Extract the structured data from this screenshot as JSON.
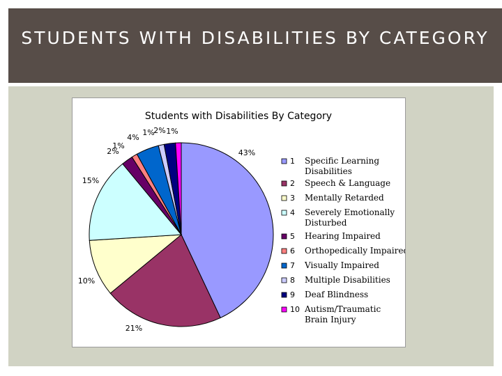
{
  "slide": {
    "title": "STUDENTS WITH DISABILITIES BY CATEGORY"
  },
  "chart_data": {
    "type": "pie",
    "title": "Students with Disabilities By Category",
    "slices": [
      {
        "num": "1",
        "label": "Specific Learning Disabilities",
        "value": 43,
        "pct_label": "43%",
        "color": "#9999ff"
      },
      {
        "num": "2",
        "label": "Speech & Language",
        "value": 21,
        "pct_label": "21%",
        "color": "#993366"
      },
      {
        "num": "3",
        "label": "Mentally Retarded",
        "value": 10,
        "pct_label": "10%",
        "color": "#ffffcc"
      },
      {
        "num": "4",
        "label": "Severely Emotionally Disturbed",
        "value": 15,
        "pct_label": "15%",
        "color": "#ccffff"
      },
      {
        "num": "5",
        "label": "Hearing Impaired",
        "value": 2,
        "pct_label": "2%",
        "color": "#660066"
      },
      {
        "num": "6",
        "label": "Orthopedically Impaired",
        "value": 1,
        "pct_label": "1%",
        "color": "#ff8080"
      },
      {
        "num": "7",
        "label": "Visually Impaired",
        "value": 4,
        "pct_label": "4%",
        "color": "#0066cc"
      },
      {
        "num": "8",
        "label": "Multiple Disabilities",
        "value": 1,
        "pct_label": "1%",
        "color": "#ccccff"
      },
      {
        "num": "9",
        "label": "Deaf Blindness",
        "value": 2,
        "pct_label": "2%",
        "color": "#000080"
      },
      {
        "num": "10",
        "label": "Autism/Traumatic Brain Injury",
        "value": 1,
        "pct_label": "1%",
        "color": "#ff00ff"
      }
    ],
    "legend_placement": "right"
  }
}
